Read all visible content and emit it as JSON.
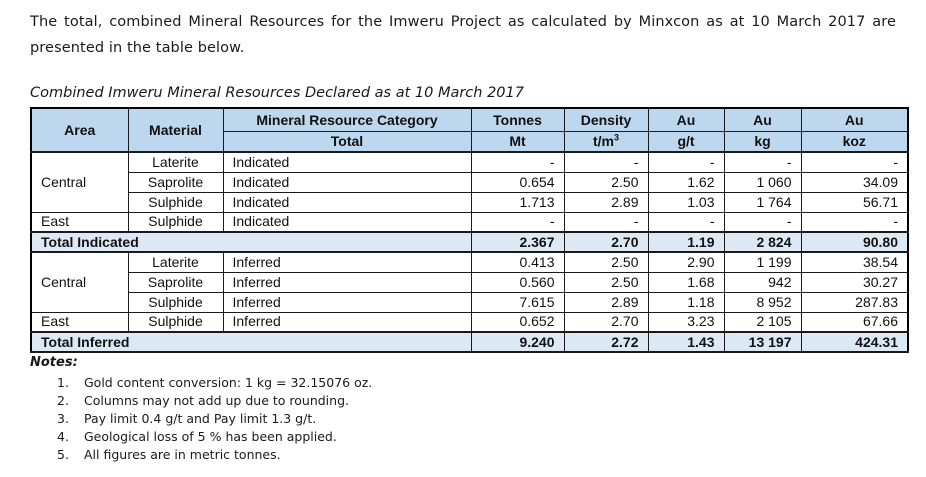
{
  "intro": "The total, combined Mineral Resources for the Imweru Project as calculated by Minxcon as at 10 March 2017 are presented in the table below.",
  "caption": "Combined Imweru Mineral Resources Declared as at 10 March 2017",
  "colors": {
    "header_bg": "#BDD7EE",
    "total_row_bg": "#DCE9F5",
    "border": "#000000"
  },
  "table": {
    "columns": [
      {
        "top": "Area"
      },
      {
        "top": "Material"
      },
      {
        "top": "Mineral Resource Category",
        "bottom": "Total"
      },
      {
        "top": "Tonnes",
        "bottom": "Mt"
      },
      {
        "top": "Density",
        "bottom": "t/m",
        "bottom_sup": "3"
      },
      {
        "top": "Au",
        "bottom": "g/t"
      },
      {
        "top": "Au",
        "bottom": "kg"
      },
      {
        "top": "Au",
        "bottom": "koz"
      }
    ],
    "groups": [
      {
        "rows": [
          {
            "area": "Central",
            "area_rowspan": 3,
            "material": "Laterite",
            "category": "Indicated",
            "values": [
              "-",
              "-",
              "-",
              "-",
              "-"
            ]
          },
          {
            "material": "Saprolite",
            "category": "Indicated",
            "values": [
              "0.654",
              "2.50",
              "1.62",
              "1 060",
              "34.09"
            ]
          },
          {
            "material": "Sulphide",
            "category": "Indicated",
            "values": [
              "1.713",
              "2.89",
              "1.03",
              "1 764",
              "56.71"
            ]
          },
          {
            "area": "East",
            "area_rowspan": 1,
            "material": "Sulphide",
            "category": "Indicated",
            "values": [
              "-",
              "-",
              "-",
              "-",
              "-"
            ]
          }
        ],
        "total": {
          "label": "Total Indicated",
          "values": [
            "2.367",
            "2.70",
            "1.19",
            "2 824",
            "90.80"
          ]
        }
      },
      {
        "rows": [
          {
            "area": "Central",
            "area_rowspan": 3,
            "material": "Laterite",
            "category": "Inferred",
            "values": [
              "0.413",
              "2.50",
              "2.90",
              "1 199",
              "38.54"
            ]
          },
          {
            "material": "Saprolite",
            "category": "Inferred",
            "values": [
              "0.560",
              "2.50",
              "1.68",
              "942",
              "30.27"
            ]
          },
          {
            "material": "Sulphide",
            "category": "Inferred",
            "values": [
              "7.615",
              "2.89",
              "1.18",
              "8 952",
              "287.83"
            ]
          },
          {
            "area": "East",
            "area_rowspan": 1,
            "material": "Sulphide",
            "category": "Inferred",
            "values": [
              "0.652",
              "2.70",
              "3.23",
              "2 105",
              "67.66"
            ]
          }
        ],
        "total": {
          "label": "Total Inferred",
          "values": [
            "9.240",
            "2.72",
            "1.43",
            "13 197",
            "424.31"
          ]
        }
      }
    ]
  },
  "notes": {
    "label": "Notes:",
    "items": [
      "Gold content conversion: 1 kg = 32.15076 oz.",
      "Columns may not add up due to rounding.",
      "Pay limit 0.4 g/t and Pay limit 1.3 g/t.",
      "Geological loss of 5 % has been applied.",
      "All figures are in metric tonnes."
    ]
  }
}
